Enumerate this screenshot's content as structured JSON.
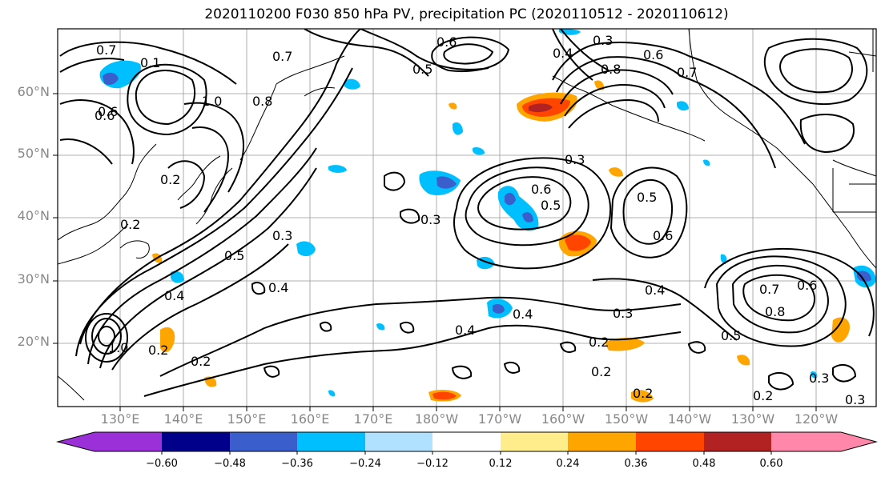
{
  "title": "2020110200 F030 850 hPa PV, precipitation PC (2020110512 - 2020110612)",
  "lat_labels": [
    "60°N",
    "50°N",
    "40°N",
    "30°N",
    "20°N"
  ],
  "lon_labels": [
    "130°E",
    "140°E",
    "150°E",
    "160°E",
    "170°E",
    "180°W",
    "170°W",
    "160°W",
    "150°W",
    "140°W",
    "130°W",
    "120°W"
  ],
  "contour_labels": [
    "0.6",
    "0.3",
    "0.7",
    "0.1",
    "0.6",
    "0.7",
    "0.5",
    "0.4",
    "0.8",
    "1.0",
    "0.8",
    "0.6",
    "0.7",
    "0.2",
    "0.2",
    "0.5",
    "0.3",
    "0.3",
    "0.6",
    "0.5",
    "0.3",
    "0.5",
    "0.6",
    "0.4",
    "0.6",
    "0.4",
    "0.4",
    "0.3",
    "0.4",
    "0.2",
    "0.2",
    "0.4",
    "0.7",
    "0.6",
    "0.8",
    "0.5",
    "0.2",
    "0.3",
    "0.2",
    "0.3",
    "1.0",
    "0.2",
    "0.2"
  ],
  "colorbar": {
    "ticks": [
      "−0.60",
      "−0.48",
      "−0.36",
      "−0.24",
      "−0.12",
      "0.12",
      "0.24",
      "0.36",
      "0.48",
      "0.60"
    ],
    "colors": [
      "#9b30d8",
      "#00008b",
      "#3a5fcd",
      "#00bfff",
      "#b0e2ff",
      "#ffffff",
      "#ffec8b",
      "#ffa500",
      "#ff4500",
      "#b22222",
      "#ff88aa"
    ]
  }
}
